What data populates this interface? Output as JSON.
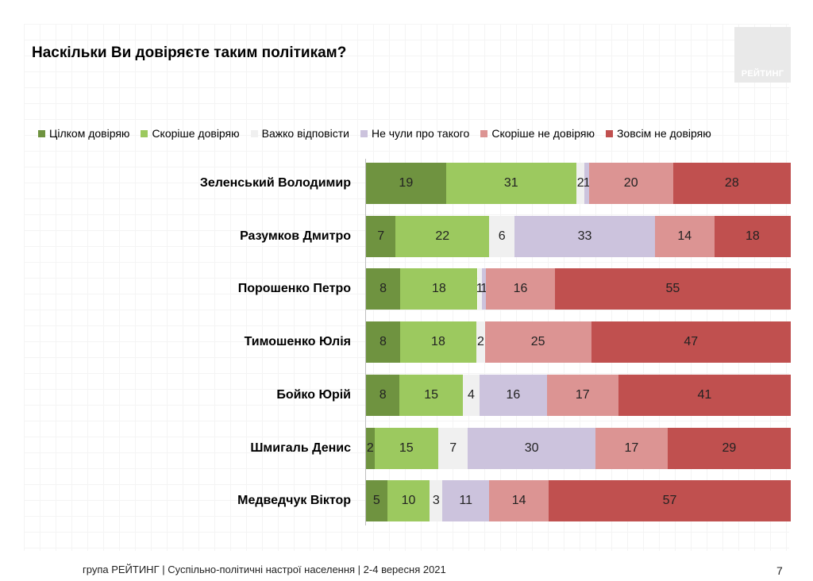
{
  "title": "Наскільки Ви довіряєте таким політикам?",
  "logo": {
    "text": "РЕЙТИНГ"
  },
  "footer": {
    "text": "група РЕЙТИНГ | Суспільно-політичні настрої населення  | 2-4 вересня 2021",
    "page": "7"
  },
  "chart_data": {
    "type": "bar",
    "orientation": "horizontal",
    "stacked": true,
    "normalized": true,
    "title": "Наскільки Ви довіряєте таким політикам?",
    "legend_position": "top",
    "grid": false,
    "categories": [
      "Зеленський Володимир",
      "Разумков Дмитро",
      "Порошенко Петро",
      "Тимошенко Юлія",
      "Бойко Юрій",
      "Шмигаль Денис",
      "Медведчук Віктор"
    ],
    "series": [
      {
        "name": "Цілком довіряю",
        "color": "#6f9340",
        "values": [
          19,
          7,
          8,
          8,
          8,
          2,
          5
        ]
      },
      {
        "name": "Скоріше довіряю",
        "color": "#9cc95f",
        "values": [
          31,
          22,
          18,
          18,
          15,
          15,
          10
        ]
      },
      {
        "name": "Важко відповісти",
        "color": "#f0f0f0",
        "values": [
          2,
          6,
          1,
          2,
          4,
          7,
          3
        ]
      },
      {
        "name": "Не чули про такого",
        "color": "#ccc3dd",
        "values": [
          1,
          33,
          1,
          0,
          16,
          30,
          11
        ]
      },
      {
        "name": "Скоріше не довіряю",
        "color": "#dc9493",
        "values": [
          20,
          14,
          16,
          25,
          17,
          17,
          14
        ]
      },
      {
        "name": "Зовсім не довіряю",
        "color": "#c0504f",
        "values": [
          28,
          18,
          55,
          47,
          41,
          29,
          57
        ]
      }
    ],
    "value_labels": [
      [
        "19",
        "31",
        "2",
        "1",
        "20",
        "28"
      ],
      [
        "7",
        "22",
        "6",
        "33",
        "14",
        "18"
      ],
      [
        "8",
        "18",
        "1",
        "1",
        "16",
        "55"
      ],
      [
        "8",
        "18",
        "2",
        "",
        "25",
        "47"
      ],
      [
        "8",
        "15",
        "4",
        "16",
        "17",
        "41"
      ],
      [
        "2",
        "15",
        "7",
        "30",
        "17",
        "29"
      ],
      [
        "5",
        "10",
        "3",
        "11",
        "14",
        "57"
      ]
    ]
  }
}
